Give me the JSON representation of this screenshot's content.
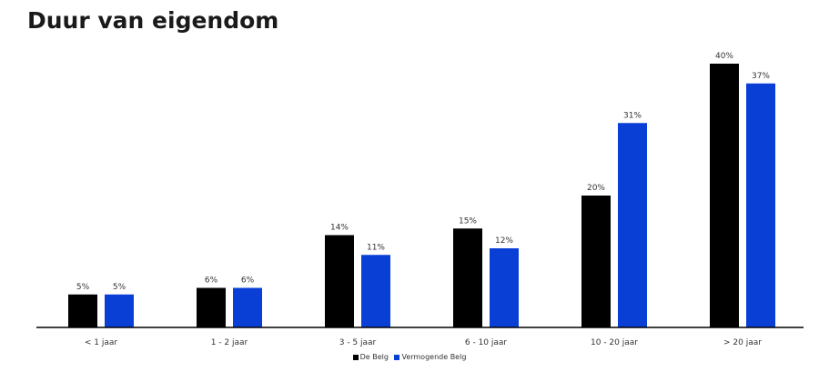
{
  "colors": {
    "series_1": "#000000",
    "series_2": "#0a3fd6",
    "axis": "#000000",
    "label_text": "#333333"
  },
  "chart_data": {
    "type": "bar",
    "title": "Duur van eigendom",
    "xlabel": "",
    "ylabel": "",
    "categories": [
      "< 1 jaar",
      "1 - 2 jaar",
      "3 - 5 jaar",
      "6 - 10 jaar",
      "10 - 20 jaar",
      "> 20 jaar"
    ],
    "series": [
      {
        "name": "De Belg",
        "values": [
          5,
          6,
          14,
          15,
          20,
          40
        ],
        "labels": [
          "5%",
          "6%",
          "14%",
          "15%",
          "20%",
          "40%"
        ]
      },
      {
        "name": "Vermogende Belg",
        "values": [
          5,
          6,
          11,
          12,
          31,
          37
        ],
        "labels": [
          "5%",
          "6%",
          "11%",
          "12%",
          "31%",
          "37%"
        ]
      }
    ],
    "ylim": [
      0,
      40
    ],
    "grid": false,
    "legend": "bottom"
  }
}
